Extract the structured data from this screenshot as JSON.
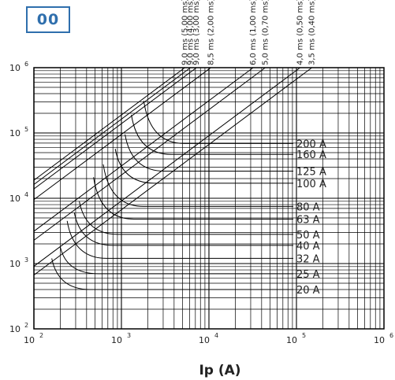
{
  "badge": "00",
  "chart_data": {
    "type": "line",
    "title": "",
    "xlabel": "Ip (A)",
    "ylabel": "",
    "x_scale": "log",
    "y_scale": "log",
    "xlim": [
      100,
      1000000
    ],
    "ylim": [
      100,
      1000000
    ],
    "grid": true,
    "x_ticks": [
      {
        "base": "10",
        "exp": "2",
        "value": 100
      },
      {
        "base": "10",
        "exp": "3",
        "value": 1000
      },
      {
        "base": "10",
        "exp": "4",
        "value": 10000
      },
      {
        "base": "10",
        "exp": "5",
        "value": 100000
      },
      {
        "base": "10",
        "exp": "6",
        "value": 1000000
      }
    ],
    "y_ticks": [
      {
        "base": "10",
        "exp": "2",
        "value": 100
      },
      {
        "base": "10",
        "exp": "3",
        "value": 1000
      },
      {
        "base": "10",
        "exp": "4",
        "value": 10000
      },
      {
        "base": "10",
        "exp": "5",
        "value": 100000
      },
      {
        "base": "10",
        "exp": "6",
        "value": 1000000
      }
    ],
    "time_lines": [
      {
        "label": "9,0 ms (5,00 ms)",
        "x_at_top": 5300
      },
      {
        "label": "9,0 ms (4,00 ms)",
        "x_at_top": 6150
      },
      {
        "label": "9,0 ms (3,00 ms)",
        "x_at_top": 7200
      },
      {
        "label": "8,5 ms (2,00 ms)",
        "x_at_top": 10500
      },
      {
        "label": "6,0 ms (1,00 ms)",
        "x_at_top": 32000
      },
      {
        "label": "5,0 ms (0,70 ms)",
        "x_at_top": 44000
      },
      {
        "label": "4,0 ms (0,50 ms)",
        "x_at_top": 110000
      },
      {
        "label": "3,5 ms (0,40 ms)",
        "x_at_top": 150000
      }
    ],
    "series": [
      {
        "name": "200 A",
        "plateau": 69000,
        "x_start": 1800,
        "y_start": 310000
      },
      {
        "name": "160 A",
        "plateau": 47000,
        "x_start": 1300,
        "y_start": 190000
      },
      {
        "name": "125 A",
        "plateau": 26000,
        "x_start": 1100,
        "y_start": 95000
      },
      {
        "name": "100 A",
        "plateau": 17000,
        "x_start": 850,
        "y_start": 57000
      },
      {
        "name": "80 A",
        "plateau": 7500,
        "x_start": 620,
        "y_start": 33000
      },
      {
        "name": "63 A",
        "plateau": 4800,
        "x_start": 480,
        "y_start": 21000
      },
      {
        "name": "50 A",
        "plateau": 2800,
        "x_start": 330,
        "y_start": 9000
      },
      {
        "name": "40 A",
        "plateau": 1900,
        "x_start": 290,
        "y_start": 6000
      },
      {
        "name": "32 A",
        "plateau": 1200,
        "x_start": 240,
        "y_start": 4500
      },
      {
        "name": "25 A",
        "plateau": 700,
        "x_start": 200,
        "y_start": 1800
      },
      {
        "name": "20 A",
        "plateau": 400,
        "x_start": 160,
        "y_start": 1200
      }
    ]
  }
}
